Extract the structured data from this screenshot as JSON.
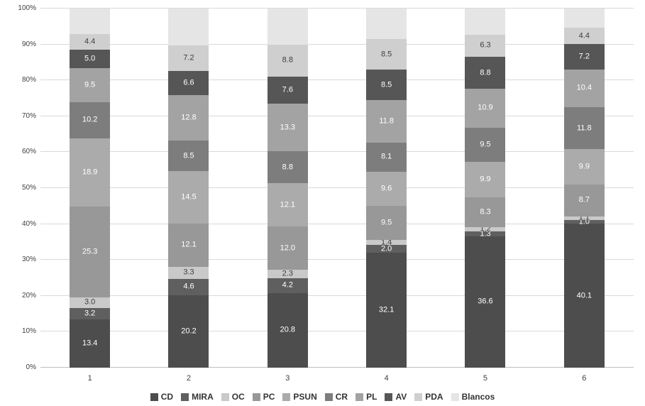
{
  "chart_data": {
    "type": "bar",
    "subtype": "stacked-100-percent",
    "title": "",
    "xlabel": "",
    "ylabel": "",
    "ylim": [
      0,
      100
    ],
    "grid": true,
    "legend_position": "bottom",
    "y_tick_labels": [
      "0%",
      "10%",
      "20%",
      "30%",
      "40%",
      "50%",
      "60%",
      "70%",
      "80%",
      "90%",
      "100%"
    ],
    "categories": [
      "1",
      "2",
      "3",
      "4",
      "5",
      "6"
    ],
    "series": [
      {
        "name": "CD",
        "color": "#4d4d4d",
        "label_color": "#ffffff",
        "labels_visible": true,
        "values": [
          13.4,
          20.2,
          20.8,
          32.1,
          36.6,
          40.1
        ]
      },
      {
        "name": "MIRA",
        "color": "#5f5f5f",
        "label_color": "#ffffff",
        "labels_visible": true,
        "values": [
          3.2,
          4.6,
          4.2,
          2.0,
          1.3,
          1.0
        ]
      },
      {
        "name": "OC",
        "color": "#c9c9c9",
        "label_color": "#3f3f3f",
        "labels_visible": true,
        "values": [
          3.0,
          3.3,
          2.3,
          1.4,
          1.2,
          1.1
        ]
      },
      {
        "name": "PC",
        "color": "#989898",
        "label_color": "#ffffff",
        "labels_visible": true,
        "values": [
          25.3,
          12.1,
          12.0,
          9.5,
          8.3,
          8.7
        ]
      },
      {
        "name": "PSUN",
        "color": "#ababab",
        "label_color": "#ffffff",
        "labels_visible": true,
        "values": [
          18.9,
          14.5,
          12.1,
          9.6,
          9.9,
          9.9
        ]
      },
      {
        "name": "CR",
        "color": "#7d7d7d",
        "label_color": "#ffffff",
        "labels_visible": true,
        "values": [
          10.2,
          8.5,
          8.8,
          8.1,
          9.5,
          11.8
        ]
      },
      {
        "name": "PL",
        "color": "#a3a3a3",
        "label_color": "#ffffff",
        "labels_visible": true,
        "values": [
          9.5,
          12.8,
          13.3,
          11.8,
          10.9,
          10.4
        ]
      },
      {
        "name": "AV",
        "color": "#565656",
        "label_color": "#ffffff",
        "labels_visible": true,
        "values": [
          5.0,
          6.6,
          7.6,
          8.5,
          8.8,
          7.2
        ]
      },
      {
        "name": "PDA",
        "color": "#cfcfcf",
        "label_color": "#3f3f3f",
        "labels_visible": true,
        "values": [
          4.4,
          7.2,
          8.8,
          8.5,
          6.3,
          4.4
        ]
      },
      {
        "name": "Blancos",
        "color": "#e5e5e5",
        "label_color": "#3f3f3f",
        "labels_visible": false,
        "values": [
          7.1,
          10.2,
          10.1,
          8.5,
          7.2,
          5.4
        ]
      }
    ]
  }
}
